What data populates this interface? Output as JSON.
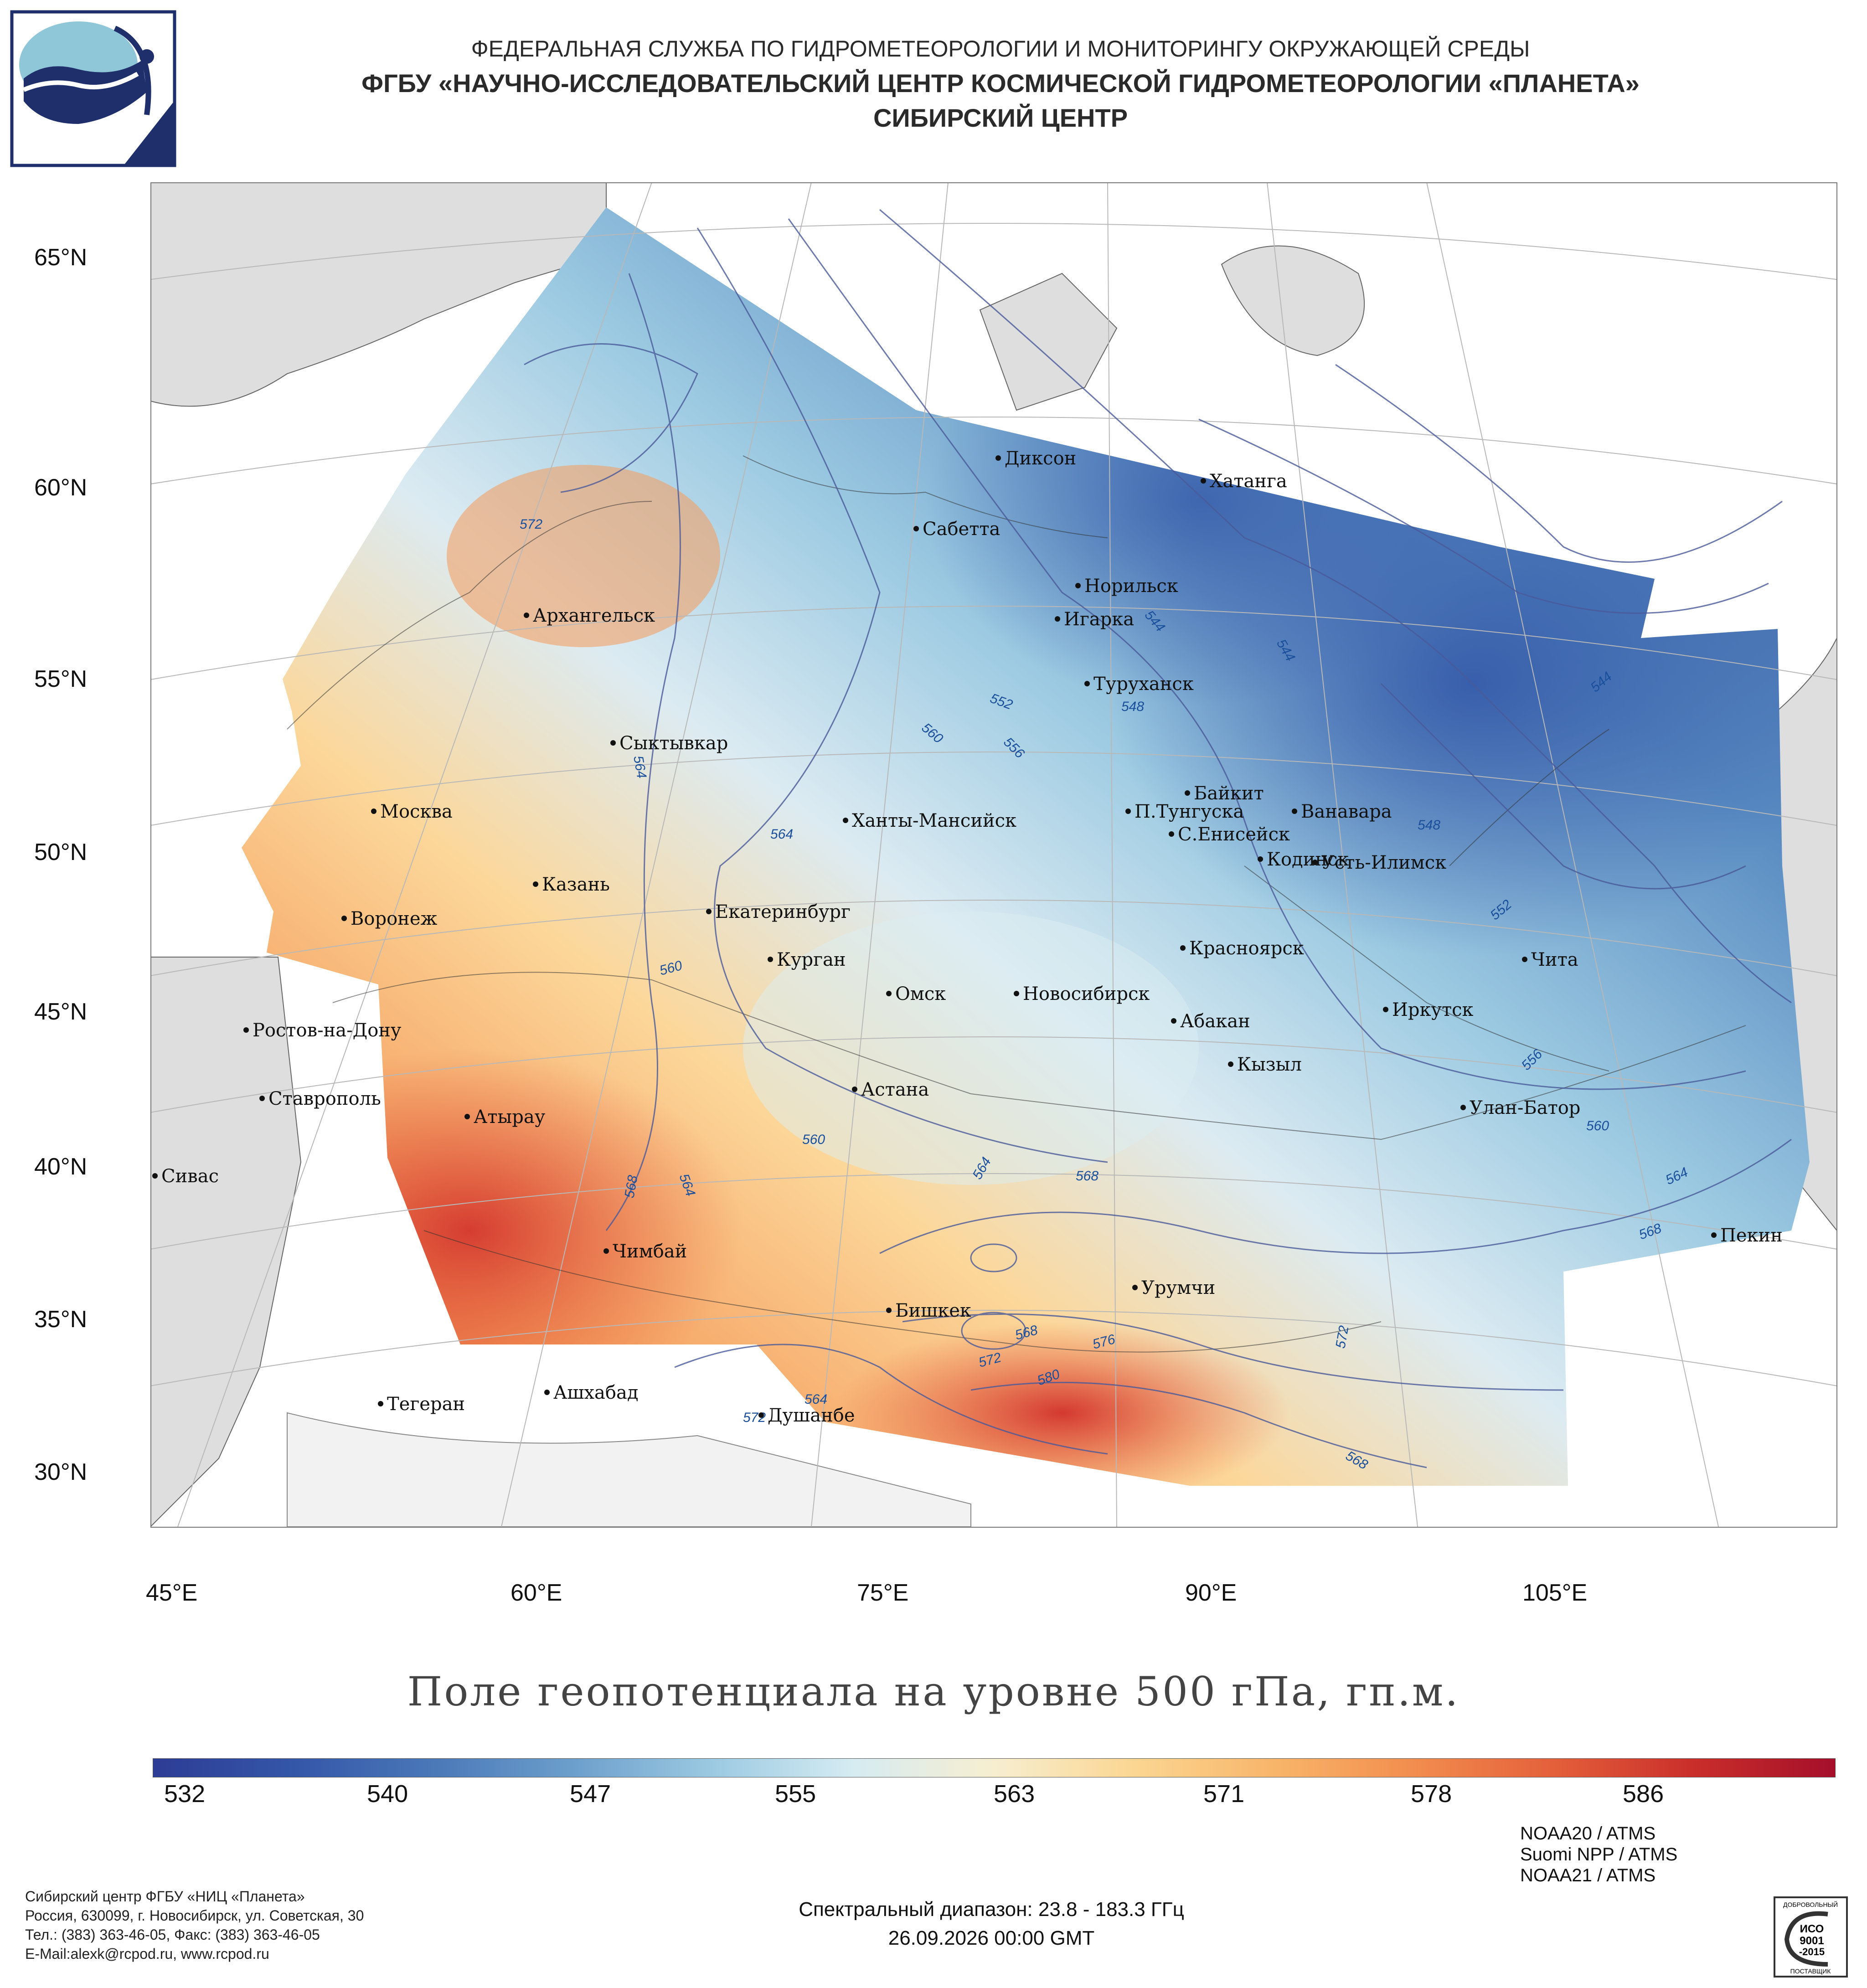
{
  "header": {
    "line1": "ФЕДЕРАЛЬНАЯ СЛУЖБА ПО ГИДРОМЕТЕОРОЛОГИИ И МОНИТОРИНГУ ОКРУЖАЮЩЕЙ СРЕДЫ",
    "line2": "ФГБУ «НАУЧНО-ИССЛЕДОВАТЕЛЬСКИЙ ЦЕНТР КОСМИЧЕСКОЙ ГИДРОМЕТЕОРОЛОГИИ «ПЛАНЕТА»",
    "line3": "СИБИРСКИЙ ЦЕНТР"
  },
  "map": {
    "lat_labels": [
      "65°N",
      "60°N",
      "55°N",
      "50°N",
      "45°N",
      "40°N",
      "35°N",
      "30°N"
    ],
    "lon_labels": [
      "45°E",
      "60°E",
      "75°E",
      "90°E",
      "105°E"
    ],
    "cities": [
      "Диксон",
      "Хатанга",
      "Сабетта",
      "Норильск",
      "Игарка",
      "Архангельск",
      "Туруханск",
      "Сыктывкар",
      "Байкит",
      "П.Тунгуска",
      "Ванавара",
      "Москва",
      "Ханты-Мансийск",
      "С.Енисейск",
      "Кодинск",
      "Усть-Илимск",
      "Казань",
      "Екатеринбург",
      "Воронеж",
      "Красноярск",
      "Чита",
      "Курган",
      "Омск",
      "Новосибирск",
      "Иркутск",
      "Ростов-на-Дону",
      "Абакан",
      "Кызыл",
      "Астана",
      "Ставрополь",
      "Улан-Батор",
      "Атырау",
      "Сивас",
      "Пекин",
      "Чимбай",
      "Урумчи",
      "Бишкек",
      "Ашхабад",
      "Тегеран",
      "Душанбе"
    ],
    "isolines": [
      "572",
      "544",
      "544",
      "544",
      "552",
      "548",
      "560",
      "556",
      "564",
      "548",
      "564",
      "552",
      "560",
      "556",
      "560",
      "560",
      "564",
      "568",
      "564",
      "568",
      "564",
      "568",
      "572",
      "568",
      "576",
      "580",
      "564",
      "572",
      "568",
      "572"
    ]
  },
  "title": "Поле геопотенциала на уровне 500 гПа, гп.м.",
  "colorbar": {
    "ticks": [
      "532",
      "540",
      "547",
      "555",
      "563",
      "571",
      "578",
      "586"
    ],
    "colors": [
      "#2d3c96",
      "#3456a8",
      "#4a78b8",
      "#6d9fcc",
      "#9ccae2",
      "#d6ecf2",
      "#f7eed0",
      "#fbd692",
      "#f8b56a",
      "#f28d4e",
      "#e45f3a",
      "#c92e2a",
      "#a50f2a"
    ]
  },
  "footer": {
    "org_lines": [
      "Сибирский центр ФГБУ «НИЦ «Планета»",
      "Россия, 630099, г. Новосибирск, ул. Советская, 30",
      "Тел.: (383) 363-46-05, Факс: (383) 363-46-05",
      "E-Mail:alexk@rcpod.ru, www.rcpod.ru"
    ],
    "spectral": "Спектральный диапазон: 23.8 - 183.3 ГГц",
    "datetime": "26.09.2026 00:00 GMT",
    "satellites": [
      "NOAA20 / ATMS",
      "Suomi NPP / ATMS",
      "NOAA21 / ATMS"
    ],
    "iso_badge": [
      "ДОБРОВОЛЬНЫЙ",
      "ИСО",
      "9001",
      "-2015",
      "ПОСТАВЩИК"
    ]
  }
}
